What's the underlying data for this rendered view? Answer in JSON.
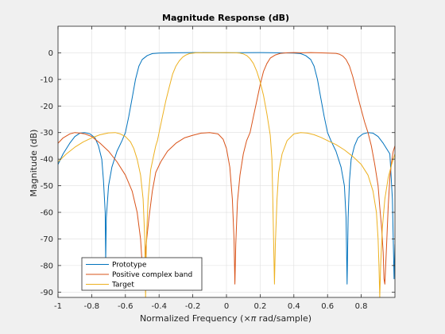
{
  "chart_data": {
    "type": "line",
    "title": "Magnitude Response (dB)",
    "xlabel_pre": "Normalized Frequency (",
    "xlabel_sym": "×π",
    "xlabel_post": " rad/sample)",
    "ylabel": "Magnitude (dB)",
    "xlim": [
      -1,
      1
    ],
    "ylim": [
      -92,
      10
    ],
    "xticks": [
      -1,
      -0.8,
      -0.6,
      -0.4,
      -0.2,
      0,
      0.2,
      0.4,
      0.6,
      0.8
    ],
    "yticks": [
      0,
      -10,
      -20,
      -30,
      -40,
      -50,
      -60,
      -70,
      -80,
      -90
    ],
    "grid": true,
    "legend_position": "bottom-left",
    "series": [
      {
        "name": "Prototype",
        "color": "#0072BD",
        "points": [
          [
            -1,
            -42
          ],
          [
            -0.97,
            -38
          ],
          [
            -0.93,
            -34
          ],
          [
            -0.9,
            -31.5
          ],
          [
            -0.87,
            -30.2
          ],
          [
            -0.84,
            -30
          ],
          [
            -0.81,
            -30.5
          ],
          [
            -0.78,
            -32
          ],
          [
            -0.76,
            -35
          ],
          [
            -0.74,
            -40
          ],
          [
            -0.73,
            -48
          ],
          [
            -0.72,
            -60
          ],
          [
            -0.717,
            -78
          ],
          [
            -0.713,
            -62
          ],
          [
            -0.7,
            -50
          ],
          [
            -0.68,
            -43
          ],
          [
            -0.65,
            -37
          ],
          [
            -0.62,
            -33
          ],
          [
            -0.6,
            -30
          ],
          [
            -0.58,
            -24
          ],
          [
            -0.56,
            -17
          ],
          [
            -0.54,
            -10
          ],
          [
            -0.52,
            -5
          ],
          [
            -0.5,
            -2.5
          ],
          [
            -0.47,
            -1
          ],
          [
            -0.44,
            -0.3
          ],
          [
            -0.4,
            -0.1
          ],
          [
            -0.3,
            0
          ],
          [
            -0.2,
            0.1
          ],
          [
            0,
            0
          ],
          [
            0.2,
            0.1
          ],
          [
            0.3,
            0
          ],
          [
            0.4,
            -0.1
          ],
          [
            0.44,
            -0.3
          ],
          [
            0.47,
            -1
          ],
          [
            0.5,
            -2.5
          ],
          [
            0.52,
            -5
          ],
          [
            0.54,
            -10
          ],
          [
            0.56,
            -17
          ],
          [
            0.58,
            -24
          ],
          [
            0.6,
            -30
          ],
          [
            0.62,
            -33
          ],
          [
            0.65,
            -37
          ],
          [
            0.68,
            -43
          ],
          [
            0.7,
            -50
          ],
          [
            0.71,
            -62
          ],
          [
            0.716,
            -87
          ],
          [
            0.722,
            -62
          ],
          [
            0.73,
            -48
          ],
          [
            0.74,
            -40
          ],
          [
            0.76,
            -35
          ],
          [
            0.78,
            -32
          ],
          [
            0.81,
            -30.5
          ],
          [
            0.84,
            -30
          ],
          [
            0.87,
            -30.2
          ],
          [
            0.9,
            -31.5
          ],
          [
            0.93,
            -34
          ],
          [
            0.97,
            -38
          ],
          [
            0.985,
            -55
          ],
          [
            0.995,
            -85
          ],
          [
            1,
            -72
          ]
        ]
      },
      {
        "name": "Positive complex band",
        "color": "#D95319",
        "points": [
          [
            -1,
            -34
          ],
          [
            -0.97,
            -32
          ],
          [
            -0.93,
            -30.5
          ],
          [
            -0.9,
            -30
          ],
          [
            -0.87,
            -30.2
          ],
          [
            -0.84,
            -30.5
          ],
          [
            -0.8,
            -31.5
          ],
          [
            -0.75,
            -34
          ],
          [
            -0.7,
            -37
          ],
          [
            -0.65,
            -41
          ],
          [
            -0.6,
            -46
          ],
          [
            -0.56,
            -52
          ],
          [
            -0.53,
            -60
          ],
          [
            -0.51,
            -70
          ],
          [
            -0.5,
            -80
          ],
          [
            -0.49,
            -88
          ],
          [
            -0.48,
            -74
          ],
          [
            -0.46,
            -62
          ],
          [
            -0.44,
            -52
          ],
          [
            -0.42,
            -45
          ],
          [
            -0.39,
            -41
          ],
          [
            -0.35,
            -37
          ],
          [
            -0.3,
            -34
          ],
          [
            -0.25,
            -32
          ],
          [
            -0.2,
            -31
          ],
          [
            -0.15,
            -30.2
          ],
          [
            -0.1,
            -30
          ],
          [
            -0.05,
            -30.5
          ],
          [
            -0.02,
            -32.5
          ],
          [
            0,
            -36
          ],
          [
            0.02,
            -43
          ],
          [
            0.035,
            -55
          ],
          [
            0.045,
            -70
          ],
          [
            0.05,
            -87
          ],
          [
            0.055,
            -72
          ],
          [
            0.065,
            -56
          ],
          [
            0.08,
            -46
          ],
          [
            0.1,
            -38
          ],
          [
            0.12,
            -33
          ],
          [
            0.14,
            -30
          ],
          [
            0.16,
            -24
          ],
          [
            0.18,
            -18
          ],
          [
            0.2,
            -12
          ],
          [
            0.22,
            -7
          ],
          [
            0.24,
            -4
          ],
          [
            0.26,
            -2
          ],
          [
            0.29,
            -0.8
          ],
          [
            0.32,
            -0.2
          ],
          [
            0.36,
            0
          ],
          [
            0.4,
            0.1
          ],
          [
            0.45,
            0
          ],
          [
            0.5,
            0.1
          ],
          [
            0.55,
            0
          ],
          [
            0.6,
            -0.1
          ],
          [
            0.65,
            -0.2
          ],
          [
            0.67,
            -0.5
          ],
          [
            0.69,
            -1.2
          ],
          [
            0.71,
            -2.5
          ],
          [
            0.73,
            -5
          ],
          [
            0.75,
            -9
          ],
          [
            0.77,
            -14
          ],
          [
            0.79,
            -19
          ],
          [
            0.82,
            -26
          ],
          [
            0.84,
            -30
          ],
          [
            0.86,
            -35
          ],
          [
            0.88,
            -42
          ],
          [
            0.9,
            -50
          ],
          [
            0.91,
            -58
          ],
          [
            0.92,
            -65
          ],
          [
            0.93,
            -75
          ],
          [
            0.935,
            -85
          ],
          [
            0.94,
            -87
          ],
          [
            0.95,
            -73
          ],
          [
            0.96,
            -58
          ],
          [
            0.97,
            -47
          ],
          [
            0.98,
            -41
          ],
          [
            0.99,
            -37
          ],
          [
            1,
            -35
          ]
        ]
      },
      {
        "name": "Target",
        "color": "#EDB120",
        "points": [
          [
            -1,
            -41
          ],
          [
            -0.95,
            -38
          ],
          [
            -0.9,
            -35.5
          ],
          [
            -0.85,
            -33.5
          ],
          [
            -0.8,
            -32
          ],
          [
            -0.75,
            -30.8
          ],
          [
            -0.7,
            -30.1
          ],
          [
            -0.66,
            -30
          ],
          [
            -0.63,
            -30.5
          ],
          [
            -0.6,
            -31.5
          ],
          [
            -0.57,
            -33.5
          ],
          [
            -0.55,
            -36
          ],
          [
            -0.53,
            -40
          ],
          [
            -0.51,
            -46
          ],
          [
            -0.495,
            -55
          ],
          [
            -0.485,
            -70
          ],
          [
            -0.48,
            -92
          ],
          [
            -0.475,
            -70
          ],
          [
            -0.465,
            -55
          ],
          [
            -0.45,
            -44
          ],
          [
            -0.43,
            -38
          ],
          [
            -0.42,
            -35
          ],
          [
            -0.41,
            -33
          ],
          [
            -0.4,
            -30
          ],
          [
            -0.38,
            -24
          ],
          [
            -0.36,
            -18
          ],
          [
            -0.34,
            -13
          ],
          [
            -0.32,
            -8
          ],
          [
            -0.3,
            -5
          ],
          [
            -0.28,
            -3
          ],
          [
            -0.26,
            -1.6
          ],
          [
            -0.24,
            -0.8
          ],
          [
            -0.22,
            -0.3
          ],
          [
            -0.18,
            0
          ],
          [
            -0.1,
            0
          ],
          [
            0,
            0.1
          ],
          [
            0.05,
            0
          ],
          [
            0.08,
            -0.1
          ],
          [
            0.1,
            -0.4
          ],
          [
            0.12,
            -1
          ],
          [
            0.14,
            -2.2
          ],
          [
            0.16,
            -4
          ],
          [
            0.18,
            -7
          ],
          [
            0.2,
            -11
          ],
          [
            0.22,
            -16
          ],
          [
            0.24,
            -23
          ],
          [
            0.26,
            -31
          ],
          [
            0.27,
            -40
          ],
          [
            0.275,
            -55
          ],
          [
            0.28,
            -72
          ],
          [
            0.285,
            -87
          ],
          [
            0.29,
            -72
          ],
          [
            0.3,
            -55
          ],
          [
            0.31,
            -45
          ],
          [
            0.33,
            -38
          ],
          [
            0.36,
            -33
          ],
          [
            0.4,
            -30.5
          ],
          [
            0.44,
            -30
          ],
          [
            0.48,
            -30.2
          ],
          [
            0.52,
            -30.8
          ],
          [
            0.56,
            -31.8
          ],
          [
            0.6,
            -33
          ],
          [
            0.65,
            -34.5
          ],
          [
            0.7,
            -36.5
          ],
          [
            0.75,
            -39
          ],
          [
            0.8,
            -42
          ],
          [
            0.84,
            -46
          ],
          [
            0.87,
            -52
          ],
          [
            0.89,
            -60
          ],
          [
            0.9,
            -70
          ],
          [
            0.905,
            -80
          ],
          [
            0.91,
            -92
          ],
          [
            0.915,
            -80
          ],
          [
            0.925,
            -66
          ],
          [
            0.94,
            -55
          ],
          [
            0.96,
            -47
          ],
          [
            0.98,
            -42
          ],
          [
            1,
            -38
          ]
        ]
      }
    ]
  }
}
